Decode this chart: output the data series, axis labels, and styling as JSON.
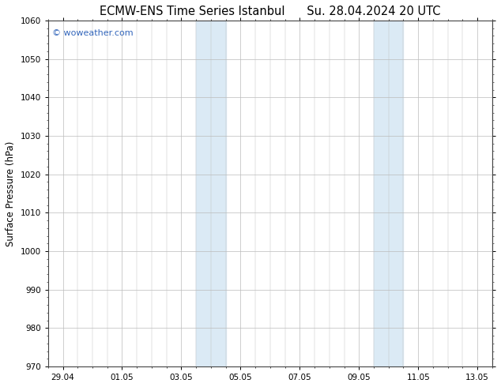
{
  "title_left": "ECMW-ENS Time Series Istanbul",
  "title_right": "Su. 28.04.2024 20 UTC",
  "ylabel": "Surface Pressure (hPa)",
  "ylim": [
    970,
    1060
  ],
  "yticks": [
    970,
    980,
    990,
    1000,
    1010,
    1020,
    1030,
    1040,
    1050,
    1060
  ],
  "xlim_start": -0.5,
  "xlim_end": 14.5,
  "xtick_labels": [
    "29.04",
    "01.05",
    "03.05",
    "05.05",
    "07.05",
    "09.05",
    "11.05",
    "13.05"
  ],
  "xtick_positions": [
    0,
    2,
    4,
    6,
    8,
    10,
    12,
    14
  ],
  "shaded_bands": [
    {
      "xmin": 4.5,
      "xmax": 5.0,
      "color": "#dbeaf5"
    },
    {
      "xmin": 5.0,
      "xmax": 5.5,
      "color": "#dbeaf5"
    },
    {
      "xmin": 10.5,
      "xmax": 11.0,
      "color": "#dbeaf5"
    },
    {
      "xmin": 11.0,
      "xmax": 11.5,
      "color": "#dbeaf5"
    }
  ],
  "watermark_text": "© woweather.com",
  "watermark_color": "#3366bb",
  "bg_color": "#ffffff",
  "plot_bg_color": "#ffffff",
  "grid_color": "#bbbbbb",
  "title_fontsize": 10.5,
  "label_fontsize": 8.5,
  "tick_fontsize": 7.5,
  "minor_tick_count": 4
}
